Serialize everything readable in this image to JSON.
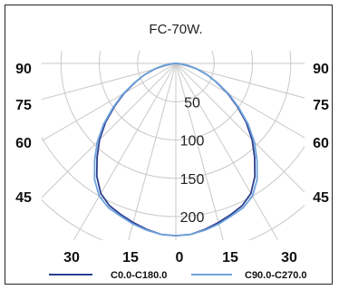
{
  "chart_data": {
    "type": "polar",
    "title": "FC-70W.",
    "angle_ticks_sides": [
      "90",
      "75",
      "60",
      "45"
    ],
    "angle_ticks_bottom": [
      "30",
      "15",
      "0",
      "15",
      "30"
    ],
    "radial_ticks": [
      "50",
      "100",
      "150",
      "200"
    ],
    "radial_max": 250,
    "series": [
      {
        "name": "C0.0-C180.0",
        "color": "#2b3f8f",
        "angles": [
          0,
          5,
          10,
          15,
          20,
          25,
          30,
          35,
          40,
          45,
          50,
          55,
          60,
          65,
          70,
          75,
          80,
          85,
          90
        ],
        "values": [
          225,
          224,
          220,
          215,
          210,
          205,
          196,
          180,
          160,
          141,
          120,
          98,
          78,
          59,
          44,
          29,
          17,
          6,
          0
        ]
      },
      {
        "name": "C90.0-C270.0",
        "color": "#6fa3dc",
        "angles": [
          0,
          5,
          10,
          15,
          20,
          25,
          30,
          35,
          40,
          45,
          50,
          55,
          60,
          65,
          70,
          75,
          80,
          85,
          90
        ],
        "values": [
          225,
          224,
          221,
          217,
          212,
          208,
          200,
          185,
          165,
          145,
          123,
          100,
          80,
          60,
          44,
          29,
          17,
          6,
          0
        ]
      }
    ]
  }
}
